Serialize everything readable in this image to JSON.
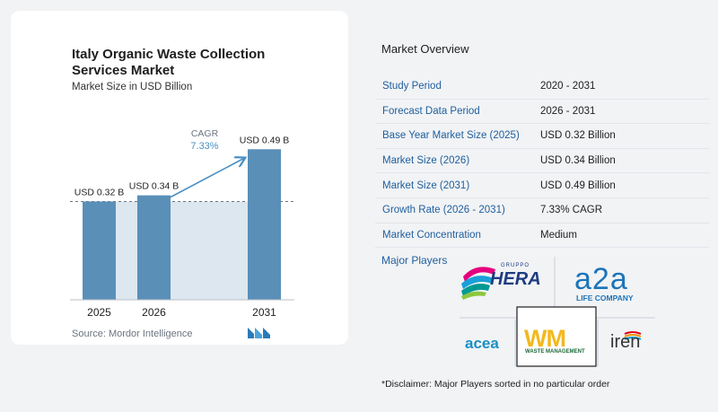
{
  "chart_data": {
    "type": "bar",
    "title": "Italy Organic Waste Collection Services Market",
    "subtitle": "Market Size in USD Billion",
    "categories": [
      "2025",
      "2026",
      "2031"
    ],
    "values": [
      0.32,
      0.34,
      0.49
    ],
    "data_labels": [
      "USD 0.32 B",
      "USD 0.34 B",
      "USD 0.49 B"
    ],
    "cagr_label": "CAGR",
    "cagr_value": "7.33%",
    "ylim": [
      0,
      0.52
    ],
    "colors": {
      "bar": "#5a8fb8",
      "shade": "#dde7f0",
      "arrow": "#4a8fc4",
      "axis": "#6b7480"
    }
  },
  "source": "Source: Mordor Intelligence",
  "overview": {
    "title": "Market Overview",
    "rows": [
      {
        "label": "Study Period",
        "value": "2020 - 2031"
      },
      {
        "label": "Forecast Data Period",
        "value": "2026 - 2031"
      },
      {
        "label": "Base Year Market Size (2025)",
        "value": "USD 0.32 Billion"
      },
      {
        "label": "Market Size (2026)",
        "value": "USD 0.34 Billion"
      },
      {
        "label": "Market Size (2031)",
        "value": "USD 0.49 Billion"
      },
      {
        "label": "Growth Rate (2026 - 2031)",
        "value": "7.33% CAGR"
      },
      {
        "label": "Market Concentration",
        "value": "Medium"
      }
    ],
    "players_label": "Major Players",
    "players": {
      "hera": "HERA",
      "hera_group": "GRUPPO",
      "a2a": "a2a",
      "a2a_tagline": "LIFE COMPANY",
      "acea": "acea",
      "wm": "WM",
      "wm_tagline": "WASTE MANAGEMENT",
      "iren": "iren"
    },
    "disclaimer": "*Disclaimer: Major Players sorted in no particular order"
  }
}
